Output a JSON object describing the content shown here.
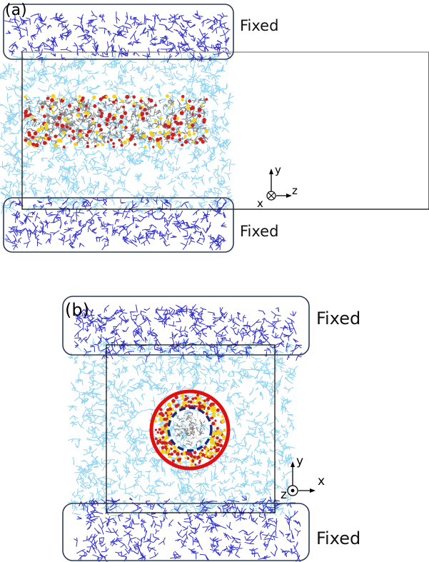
{
  "panel_a": {
    "label": "(a)",
    "fixed_top": "Fixed",
    "fixed_bottom": "Fixed",
    "axes": {
      "y": "y",
      "z": "z",
      "x": "x"
    },
    "axis_symbol": "into-page-cross"
  },
  "panel_b": {
    "label": "(b)",
    "fixed_top": "Fixed",
    "fixed_bottom": "Fixed",
    "axes": {
      "y": "y",
      "x": "x",
      "z": "z"
    },
    "axis_symbol": "out-of-page-dot"
  },
  "colors": {
    "fixed_atoms": "#3333cc",
    "mobile_atoms": "#8fd3f0",
    "tube_carbon": "#808080",
    "oxygen": "#cc2222",
    "hydrogen": "#f2d21b",
    "outer_circle": "#e01010",
    "inner_circle": "#1a2a7a",
    "frame": "#000000"
  }
}
